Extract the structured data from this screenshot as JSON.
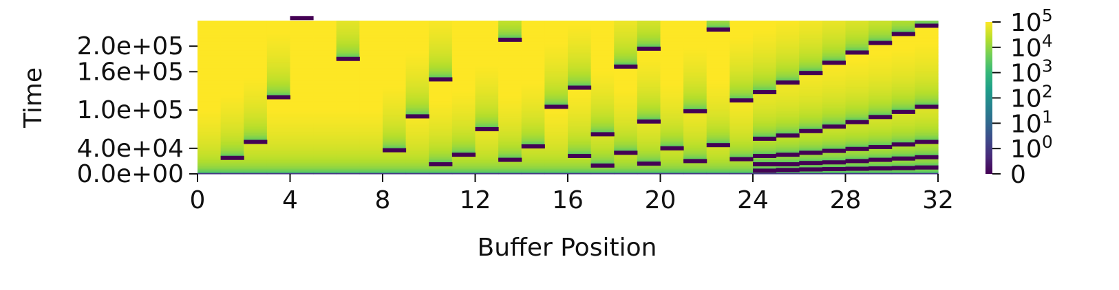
{
  "chart_data": {
    "type": "heatmap",
    "title": "",
    "xlabel": "Buffer Position",
    "ylabel": "Time",
    "xlim": [
      0,
      32
    ],
    "ylim": [
      0,
      240000
    ],
    "x_ticks": [
      {
        "value": 0,
        "label": "0"
      },
      {
        "value": 4,
        "label": "4"
      },
      {
        "value": 8,
        "label": "8"
      },
      {
        "value": 12,
        "label": "12"
      },
      {
        "value": 16,
        "label": "16"
      },
      {
        "value": 20,
        "label": "20"
      },
      {
        "value": 24,
        "label": "24"
      },
      {
        "value": 28,
        "label": "28"
      },
      {
        "value": 32,
        "label": "32"
      }
    ],
    "y_ticks": [
      {
        "value": 0,
        "label": "0.0e+00"
      },
      {
        "value": 40000,
        "label": "4.0e+04"
      },
      {
        "value": 100000,
        "label": "1.0e+05"
      },
      {
        "value": 160000,
        "label": "1.6e+05"
      },
      {
        "value": 200000,
        "label": "2.0e+05"
      }
    ],
    "colorbar": {
      "scale": "symlog",
      "colormap": "viridis",
      "range": [
        0,
        100000
      ],
      "ticks": [
        {
          "value": 0,
          "base": "0",
          "exp": ""
        },
        {
          "value": 1,
          "base": "10",
          "exp": "0"
        },
        {
          "value": 10,
          "base": "10",
          "exp": "1"
        },
        {
          "value": 100,
          "base": "10",
          "exp": "2"
        },
        {
          "value": 1000,
          "base": "10",
          "exp": "3"
        },
        {
          "value": 10000,
          "base": "10",
          "exp": "4"
        },
        {
          "value": 100000,
          "base": "10",
          "exp": "5"
        }
      ]
    },
    "description": "Each buffer position column is reset (value 0, dark band) at the listed times; between resets the value grows with elapsed time.",
    "reset_times": [
      [
        0
      ],
      [
        0,
        25000
      ],
      [
        0,
        50000
      ],
      [
        0,
        120000
      ],
      [
        0,
        244000
      ],
      [
        0
      ],
      [
        0,
        180000
      ],
      [
        0
      ],
      [
        0,
        37000
      ],
      [
        0,
        90000
      ],
      [
        0,
        15000,
        148000
      ],
      [
        0,
        30000
      ],
      [
        0,
        70000
      ],
      [
        0,
        22000,
        210000
      ],
      [
        0,
        43000
      ],
      [
        0,
        105000
      ],
      [
        0,
        28000,
        135000
      ],
      [
        0,
        13000,
        62000
      ],
      [
        0,
        33000,
        168000
      ],
      [
        0,
        16000,
        82000,
        196000
      ],
      [
        0,
        40000
      ],
      [
        0,
        20000,
        98000
      ],
      [
        0,
        45000,
        226000
      ],
      [
        0,
        23000,
        115000
      ],
      [
        0,
        5000,
        15000,
        28000,
        55000,
        128000
      ],
      [
        0,
        6000,
        15000,
        30000,
        60000,
        143000
      ],
      [
        0,
        7000,
        17000,
        33000,
        67000,
        158000
      ],
      [
        0,
        7500,
        18000,
        36000,
        74000,
        174000
      ],
      [
        0,
        8000,
        20000,
        39000,
        81000,
        190000
      ],
      [
        0,
        8500,
        22000,
        42000,
        89000,
        205000
      ],
      [
        0,
        9000,
        24000,
        46000,
        97000,
        219000
      ],
      [
        0,
        10000,
        26000,
        50000,
        105000,
        232000
      ]
    ]
  }
}
